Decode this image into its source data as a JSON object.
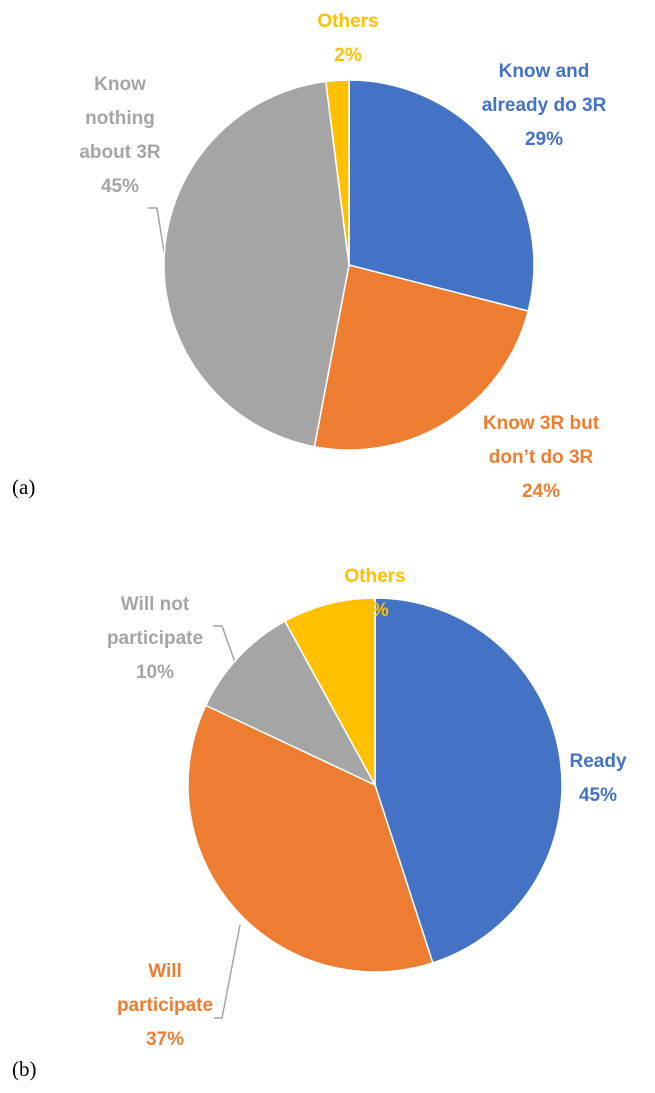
{
  "chart_data": [
    {
      "type": "pie",
      "label": "(a)",
      "categories": [
        "Know and already do 3R",
        "Know 3R but don’t do 3R",
        "Know nothing about 3R",
        "Others"
      ],
      "values": [
        29,
        24,
        45,
        2
      ],
      "value_labels": [
        "29%",
        "24%",
        "45%",
        "2%"
      ],
      "colors": [
        "#4472c4",
        "#ed7d31",
        "#a5a5a5",
        "#ffc000"
      ]
    },
    {
      "type": "pie",
      "label": "(b)",
      "categories": [
        "Ready",
        "Will participate",
        "Will not participate",
        "Others"
      ],
      "values": [
        45,
        37,
        10,
        8
      ],
      "value_labels": [
        "45%",
        "37%",
        "10%",
        "8%"
      ],
      "colors": [
        "#4472c4",
        "#ed7d31",
        "#a5a5a5",
        "#ffc000"
      ]
    }
  ]
}
